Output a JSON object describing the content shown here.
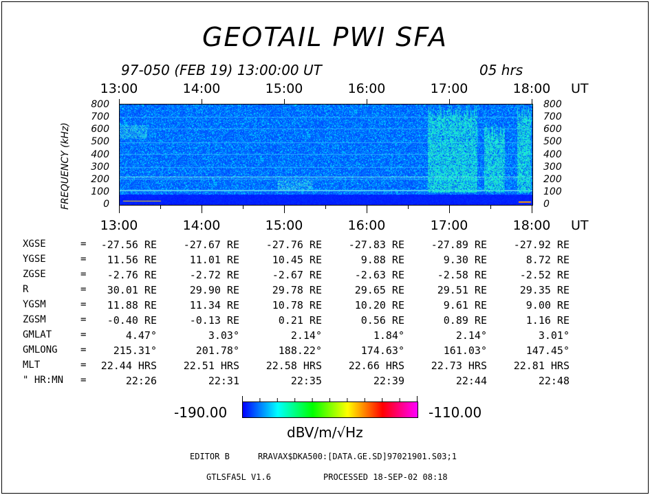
{
  "title": "GEOTAIL  PWI  SFA",
  "subtitle": {
    "date": "97-050  (FEB 19)  13:00:00  UT",
    "duration": "05  hrs"
  },
  "time_axis": {
    "ticks": [
      "13:00",
      "14:00",
      "15:00",
      "16:00",
      "17:00",
      "18:00"
    ],
    "unit": "UT"
  },
  "freq_axis": {
    "label": "FREQUENCY (kHz)",
    "ticks": [
      "0",
      "100",
      "200",
      "300",
      "400",
      "500",
      "600",
      "700",
      "800"
    ],
    "range": [
      0,
      800
    ]
  },
  "ephemeris": {
    "rows": [
      {
        "label": "XGSE",
        "eq": "=",
        "values": [
          "-27.56 RE",
          "-27.67 RE",
          "-27.76 RE",
          "-27.83 RE",
          "-27.89 RE",
          "-27.92 RE"
        ]
      },
      {
        "label": "YGSE",
        "eq": "=",
        "values": [
          "11.56 RE",
          "11.01 RE",
          "10.45 RE",
          "9.88 RE",
          "9.30 RE",
          "8.72 RE"
        ]
      },
      {
        "label": "ZGSE",
        "eq": "=",
        "values": [
          "-2.76 RE",
          "-2.72 RE",
          "-2.67 RE",
          "-2.63 RE",
          "-2.58 RE",
          "-2.52 RE"
        ]
      },
      {
        "label": "R",
        "eq": "=",
        "values": [
          "30.01 RE",
          "29.90 RE",
          "29.78 RE",
          "29.65 RE",
          "29.51 RE",
          "29.35 RE"
        ]
      },
      {
        "label": "YGSM",
        "eq": "=",
        "values": [
          "11.88 RE",
          "11.34 RE",
          "10.78 RE",
          "10.20 RE",
          "9.61 RE",
          "9.00 RE"
        ]
      },
      {
        "label": "ZGSM",
        "eq": "=",
        "values": [
          "-0.40 RE",
          "-0.13 RE",
          "0.21 RE",
          "0.56 RE",
          "0.89 RE",
          "1.16 RE"
        ]
      },
      {
        "label": "GMLAT",
        "eq": "=",
        "values": [
          "4.47°",
          "3.03°",
          "2.14°",
          "1.84°",
          "2.14°",
          "3.01°"
        ]
      },
      {
        "label": "GMLONG",
        "eq": "=",
        "values": [
          "215.31°",
          "201.78°",
          "188.22°",
          "174.63°",
          "161.03°",
          "147.45°"
        ]
      },
      {
        "label": "MLT",
        "eq": "=",
        "values": [
          "22.44 HRS",
          "22.51 HRS",
          "22.58 HRS",
          "22.66 HRS",
          "22.73 HRS",
          "22.81 HRS"
        ]
      },
      {
        "label": "\" HR:MN",
        "eq": "=",
        "values": [
          "22:26",
          "22:31",
          "22:35",
          "22:39",
          "22:44",
          "22:48"
        ]
      }
    ]
  },
  "colorbar": {
    "min_label": "-190.00",
    "max_label": "-110.00",
    "unit": "dBV/m/√Hz",
    "colors": [
      "#0000ff",
      "#00ffff",
      "#00ff00",
      "#ffff00",
      "#ff0000",
      "#ff00ff"
    ]
  },
  "footer": {
    "editor": "EDITOR B",
    "path": "RRAVAX$DKA500:[DATA.GE.SD]97021901.S03;1",
    "program": "GTLSFA5L  V1.6",
    "processed": "PROCESSED  18-SEP-02   08:18"
  }
}
